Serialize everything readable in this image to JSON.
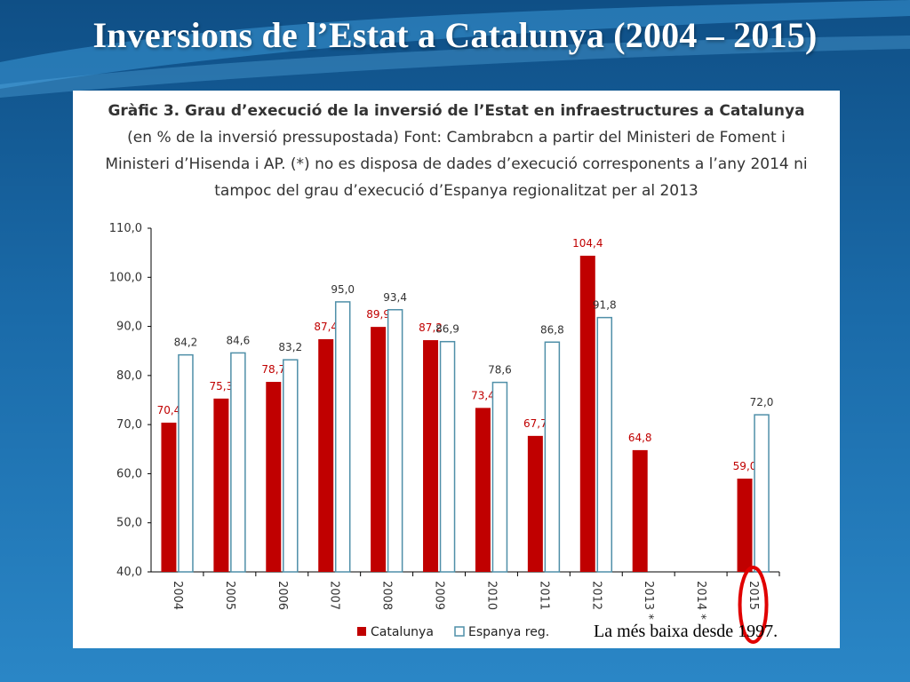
{
  "slide": {
    "title": "Inversions de l’Estat a Catalunya (2004 – 2015)",
    "note": "La més baixa desde 1997."
  },
  "colors": {
    "catalunya": "#c00000",
    "espanya": "#ffffff",
    "espanya_border": "#4f8fa8",
    "highlight": "#e00000"
  },
  "chart_data": {
    "type": "bar",
    "title": "Gràfic 3. Grau d’execució de la inversió de l’Estat en infraestructures a Catalunya",
    "subtitle_lines": [
      "(en % de la inversió pressupostada) Font: Cambrabcn a partir del Ministeri de Foment i",
      "Ministeri d’Hisenda i AP. (*) no es disposa de dades d’execució corresponents a l’any 2014 ni",
      "tampoc del grau d’execució d’Espanya regionalitzat per al 2013"
    ],
    "categories": [
      "2004",
      "2005",
      "2006",
      "2007",
      "2008",
      "2009",
      "2010",
      "2011",
      "2012",
      "2013 *",
      "2014 *",
      "2015"
    ],
    "series": [
      {
        "name": "Catalunya",
        "values": [
          70.4,
          75.3,
          78.7,
          87.4,
          89.9,
          87.2,
          73.4,
          67.7,
          104.4,
          64.8,
          null,
          59.0
        ],
        "labels": [
          "70,4",
          "75,3",
          "78,7",
          "87,4",
          "89,9",
          "87,2",
          "73,4",
          "67,7",
          "104,4",
          "64,8",
          "",
          "59,0"
        ]
      },
      {
        "name": "Espanya reg.",
        "values": [
          84.2,
          84.6,
          83.2,
          95.0,
          93.4,
          86.9,
          78.6,
          86.8,
          91.8,
          null,
          null,
          72.0
        ],
        "labels": [
          "84,2",
          "84,6",
          "83,2",
          "95,0",
          "93,4",
          "86,9",
          "78,6",
          "86,8",
          "91,8",
          "",
          "",
          "72,0"
        ]
      }
    ],
    "ylim": [
      40,
      110
    ],
    "yticks": [
      "40,0",
      "50,0",
      "60,0",
      "70,0",
      "80,0",
      "90,0",
      "100,0",
      "110,0"
    ],
    "ytick_values": [
      40,
      50,
      60,
      70,
      80,
      90,
      100,
      110
    ],
    "grid": false,
    "legend": "bottom-left",
    "highlighted_category": "2015"
  }
}
